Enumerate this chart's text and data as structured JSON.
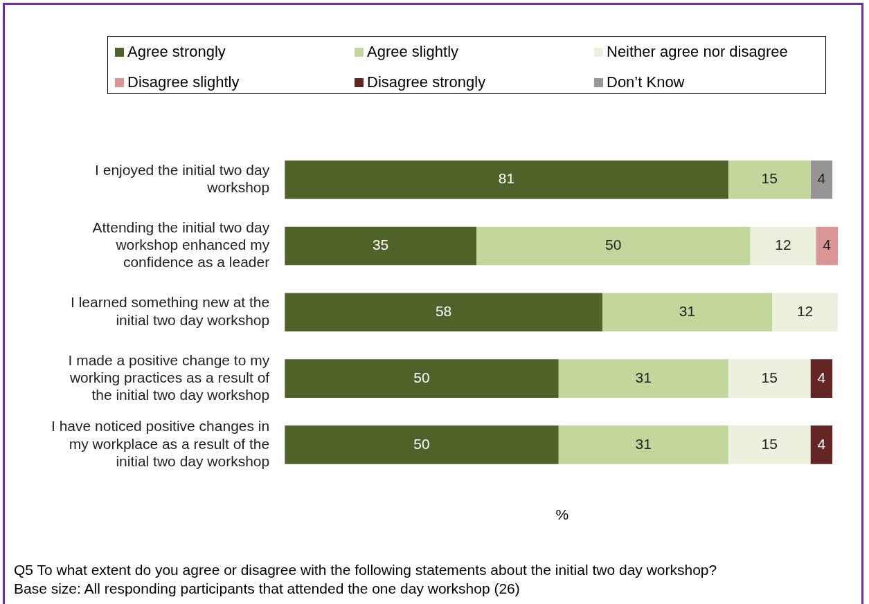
{
  "chart_data": {
    "type": "bar",
    "orientation": "horizontal",
    "stacked": true,
    "data_labels": true,
    "legend": "top",
    "tick_labels": "y",
    "xlabel": "%",
    "categories": [
      "I enjoyed the initial two day workshop",
      "Attending the initial two day workshop enhanced my confidence as a leader",
      "I learned something new at the initial two day workshop",
      "I made a positive change to my working practices as a result of the initial two day workshop",
      "I have noticed positive changes in my workplace as a result of the initial two day workshop"
    ],
    "series": [
      {
        "name": "Agree strongly",
        "color": "#4f6228",
        "values": [
          81,
          35,
          58,
          50,
          50
        ]
      },
      {
        "name": "Agree slightly",
        "color": "#c3d69b",
        "values": [
          15,
          50,
          31,
          31,
          31
        ]
      },
      {
        "name": "Neither agree nor disagree",
        "color": "#ebf1de",
        "values": [
          null,
          12,
          12,
          15,
          15
        ]
      },
      {
        "name": "Disagree slightly",
        "color": "#d99694",
        "values": [
          null,
          4,
          null,
          null,
          null
        ]
      },
      {
        "name": "Disagree strongly",
        "color": "#632523",
        "values": [
          null,
          null,
          null,
          4,
          4
        ]
      },
      {
        "name": "Don’t Know",
        "color": "#969696",
        "values": [
          4,
          null,
          null,
          null,
          null
        ]
      }
    ],
    "annotations": [
      "Q5  To what extent do you agree or disagree with the following statements about the initial two day workshop?",
      "Base size: All responding participants that attended the one day workshop (26)"
    ]
  }
}
